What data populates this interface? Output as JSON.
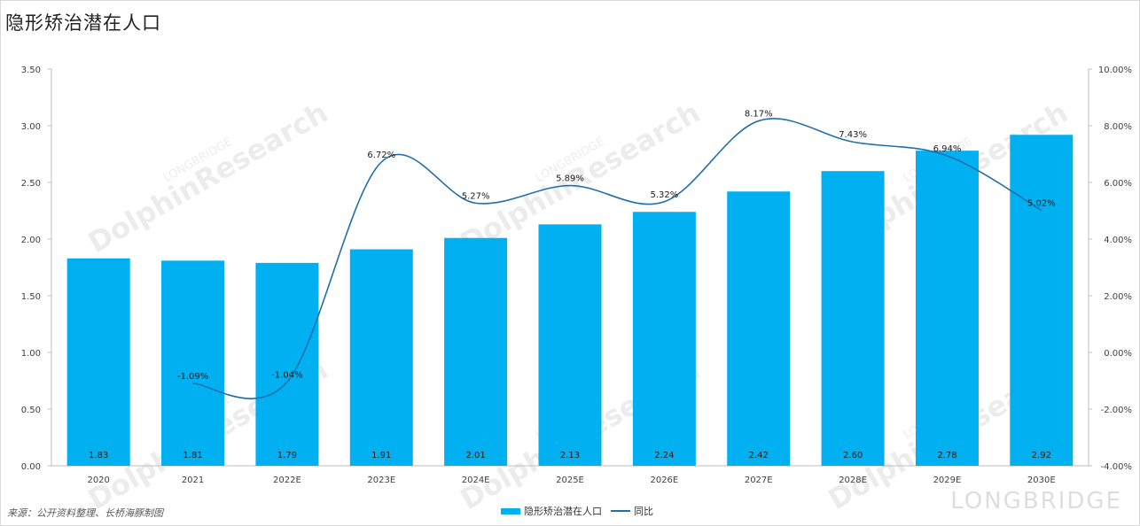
{
  "title": "隐形矫治潜在人口",
  "source": "来源：公开资料整理、长桥海豚制图",
  "watermark": {
    "brand": "LONGBRIDGE",
    "product": "DolphinResearch"
  },
  "colors": {
    "bar": "#00b0f0",
    "line": "#1f6fad",
    "axis": "#bfbfbf",
    "text": "#404040"
  },
  "chart_data": {
    "type": "bar+line",
    "categories": [
      "2020",
      "2021",
      "2022E",
      "2023E",
      "2024E",
      "2025E",
      "2026E",
      "2027E",
      "2028E",
      "2029E",
      "2030E"
    ],
    "series": [
      {
        "name": "隐形矫治潜在人口",
        "type": "bar",
        "axis": "left",
        "values": [
          1.83,
          1.81,
          1.79,
          1.91,
          2.01,
          2.13,
          2.24,
          2.42,
          2.6,
          2.78,
          2.92
        ],
        "labels": [
          "1.83",
          "1.81",
          "1.79",
          "1.91",
          "2.01",
          "2.13",
          "2.24",
          "2.42",
          "2.60",
          "2.78",
          "2.92"
        ]
      },
      {
        "name": "同比",
        "type": "line",
        "axis": "right",
        "values": [
          null,
          -1.09,
          -1.04,
          6.72,
          5.27,
          5.89,
          5.32,
          8.17,
          7.43,
          6.94,
          5.02
        ],
        "labels": [
          "",
          "-1.09%",
          "-1.04%",
          "6.72%",
          "5.27%",
          "5.89%",
          "5.32%",
          "8.17%",
          "7.43%",
          "6.94%",
          "5.02%"
        ]
      }
    ],
    "y_left": {
      "range": [
        0,
        3.5
      ],
      "ticks": [
        0,
        0.5,
        1.0,
        1.5,
        2.0,
        2.5,
        3.0,
        3.5
      ],
      "tick_labels": [
        "0.00",
        "0.50",
        "1.00",
        "1.50",
        "2.00",
        "2.50",
        "3.00",
        "3.50"
      ]
    },
    "y_right": {
      "range": [
        -4,
        10
      ],
      "ticks": [
        -4,
        -2,
        0,
        2,
        4,
        6,
        8,
        10
      ],
      "tick_labels": [
        "-4.00%",
        "-2.00%",
        "0.00%",
        "2.00%",
        "4.00%",
        "6.00%",
        "8.00%",
        "10.00%"
      ]
    },
    "legend": [
      "隐形矫治潜在人口",
      "同比"
    ],
    "legend_position": "bottom-center"
  }
}
